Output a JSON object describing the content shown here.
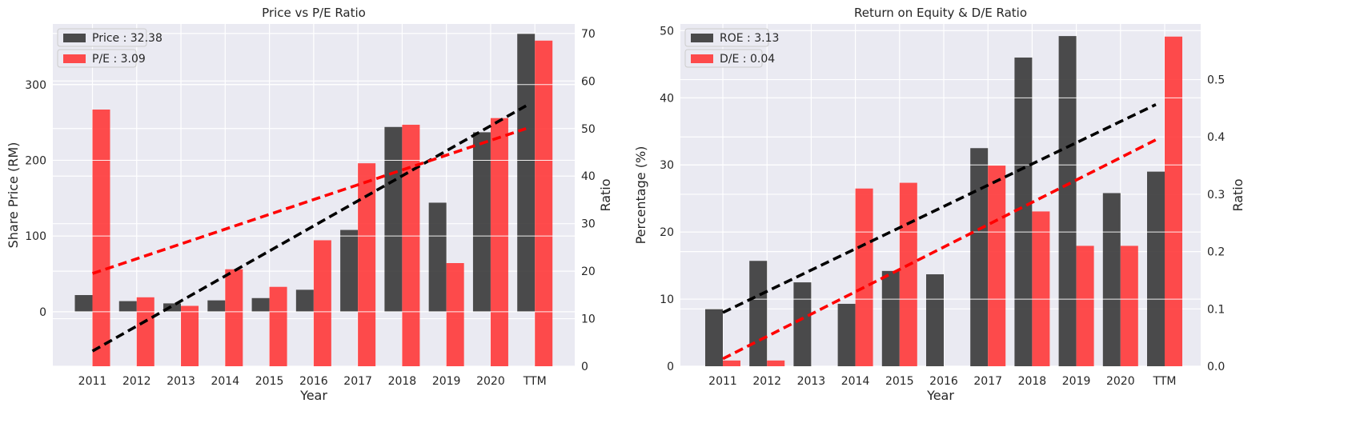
{
  "style": {
    "plot_bg": "#eaeaf2",
    "grid": "#ffffff",
    "dark_bar": "#333333",
    "red_bar": "#ff3333",
    "trend_dark": "#000000",
    "trend_red": "#ff0000"
  },
  "chart_data": [
    {
      "type": "bar",
      "title": "Price vs P/E Ratio",
      "xlabel": "Year",
      "ylabel": "Share Price (RM)",
      "y2label": "Ratio",
      "categories": [
        "2011",
        "2012",
        "2013",
        "2014",
        "2015",
        "2016",
        "2017",
        "2018",
        "2019",
        "2020",
        "TTM"
      ],
      "ylim": [
        -72,
        380
      ],
      "y2lim": [
        0,
        72
      ],
      "yticks": [
        0,
        100,
        200,
        300
      ],
      "y2ticks": [
        0,
        10,
        20,
        30,
        40,
        50,
        60,
        70
      ],
      "grid": true,
      "legend_position": "top-left",
      "series": [
        {
          "name": "Price : 32.38",
          "axis": "left",
          "color": "#333333",
          "values": [
            22,
            14,
            11,
            15,
            18,
            29,
            108,
            244,
            144,
            237,
            367
          ]
        },
        {
          "name": "P/E : 3.09",
          "axis": "right",
          "color": "#ff3333",
          "values": [
            54,
            14.5,
            12.7,
            20.4,
            16.7,
            26.5,
            42.7,
            50.8,
            21.7,
            52.2,
            68.5
          ]
        }
      ],
      "trendlines": [
        {
          "axis": "left",
          "color": "#000000",
          "from": [
            0,
            -52
          ],
          "to": [
            9.8,
            272
          ]
        },
        {
          "axis": "right",
          "color": "#ff0000",
          "from": [
            0,
            19.5
          ],
          "to": [
            9.8,
            50
          ]
        }
      ]
    },
    {
      "type": "bar",
      "title": "Return on Equity & D/E Ratio",
      "xlabel": "Year",
      "ylabel": "Percentage (%)",
      "y2label": "Ratio",
      "categories": [
        "2011",
        "2012",
        "2013",
        "2014",
        "2015",
        "2016",
        "2017",
        "2018",
        "2019",
        "2020",
        "TTM"
      ],
      "ylim": [
        0,
        51
      ],
      "y2lim": [
        0,
        0.597
      ],
      "yticks": [
        0,
        10,
        20,
        30,
        40,
        50
      ],
      "y2ticks": [
        0.0,
        0.1,
        0.2,
        0.3,
        0.4,
        0.5
      ],
      "y2tick_labels": [
        "0.0",
        "0.1",
        "0.2",
        "0.3",
        "0.4",
        "0.5"
      ],
      "grid": true,
      "legend_position": "top-left",
      "series": [
        {
          "name": "ROE : 3.13",
          "axis": "left",
          "color": "#333333",
          "values": [
            8.5,
            15.7,
            12.5,
            9.3,
            14.2,
            13.7,
            32.5,
            46,
            49.2,
            25.8,
            29
          ]
        },
        {
          "name": "D/E : 0.04",
          "axis": "right",
          "color": "#ff3333",
          "values": [
            0.01,
            0.01,
            0,
            0.31,
            0.32,
            0,
            0.35,
            0.27,
            0.21,
            0.21,
            0.575
          ]
        }
      ],
      "trendlines": [
        {
          "axis": "left",
          "color": "#000000",
          "from": [
            0,
            8
          ],
          "to": [
            9.8,
            39
          ]
        },
        {
          "axis": "right",
          "color": "#ff0000",
          "from": [
            0,
            0.013
          ],
          "to": [
            9.8,
            0.395
          ]
        }
      ]
    }
  ]
}
